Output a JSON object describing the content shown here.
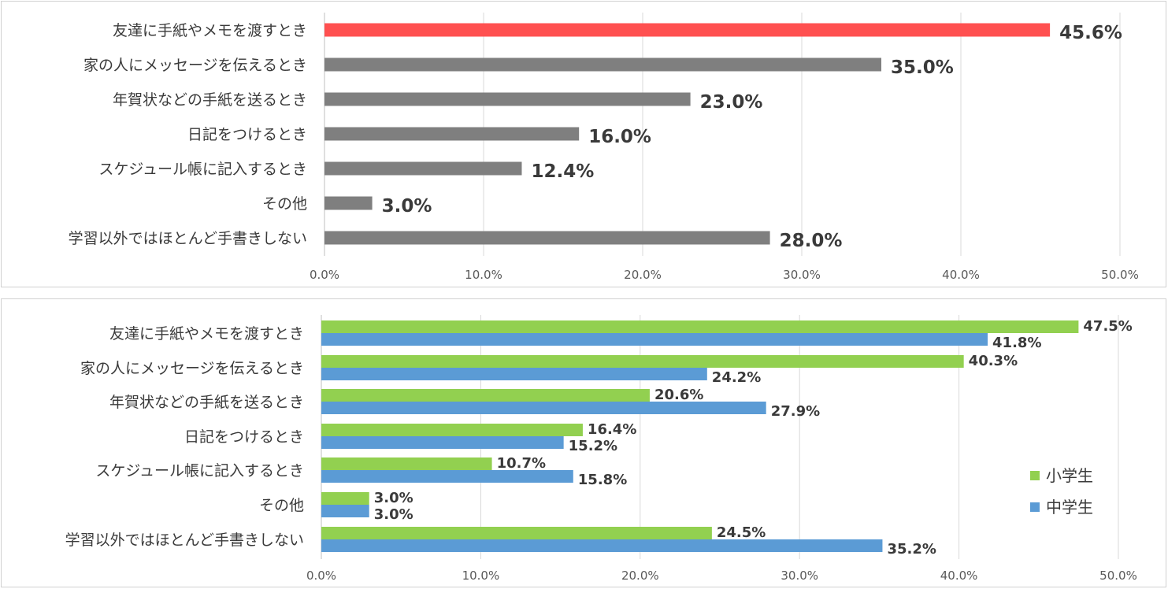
{
  "chart_data": [
    {
      "type": "bar",
      "orientation": "horizontal",
      "categories": [
        "友達に手紙やメモを渡すとき",
        "家の人にメッセージを伝えるとき",
        "年賀状などの手紙を送るとき",
        "日記をつけるとき",
        "スケジュール帳に記入するとき",
        "その他",
        "学習以外ではほとんど手書きしない"
      ],
      "values": [
        45.6,
        35.0,
        23.0,
        16.0,
        12.4,
        3.0,
        28.0
      ],
      "value_labels": [
        "45.6%",
        "35.0%",
        "23.0%",
        "16.0%",
        "12.4%",
        "3.0%",
        "28.0%"
      ],
      "bar_colors": [
        "#ff5050",
        "#7f7f7f",
        "#7f7f7f",
        "#7f7f7f",
        "#7f7f7f",
        "#7f7f7f",
        "#7f7f7f"
      ],
      "xticks": [
        "0.0%",
        "10.0%",
        "20.0%",
        "30.0%",
        "40.0%",
        "50.0%"
      ],
      "xlim": [
        0,
        50
      ],
      "grid": true,
      "legend": null
    },
    {
      "type": "bar",
      "orientation": "horizontal",
      "categories": [
        "友達に手紙やメモを渡すとき",
        "家の人にメッセージを伝えるとき",
        "年賀状などの手紙を送るとき",
        "日記をつけるとき",
        "スケジュール帳に記入するとき",
        "その他",
        "学習以外ではほとんど手書きしない"
      ],
      "series": [
        {
          "name": "小学生",
          "color": "#92d050",
          "values": [
            47.5,
            40.3,
            20.6,
            16.4,
            10.7,
            3.0,
            24.5
          ],
          "value_labels": [
            "47.5%",
            "40.3%",
            "20.6%",
            "16.4%",
            "10.7%",
            "3.0%",
            "24.5%"
          ]
        },
        {
          "name": "中学生",
          "color": "#5b9bd5",
          "values": [
            41.8,
            24.2,
            27.9,
            15.2,
            15.8,
            3.0,
            35.2
          ],
          "value_labels": [
            "41.8%",
            "24.2%",
            "27.9%",
            "15.2%",
            "15.8%",
            "3.0%",
            "35.2%"
          ]
        }
      ],
      "xticks": [
        "0.0%",
        "10.0%",
        "20.0%",
        "30.0%",
        "40.0%",
        "50.0%"
      ],
      "xlim": [
        0,
        50
      ],
      "grid": true,
      "legend": "right"
    }
  ]
}
